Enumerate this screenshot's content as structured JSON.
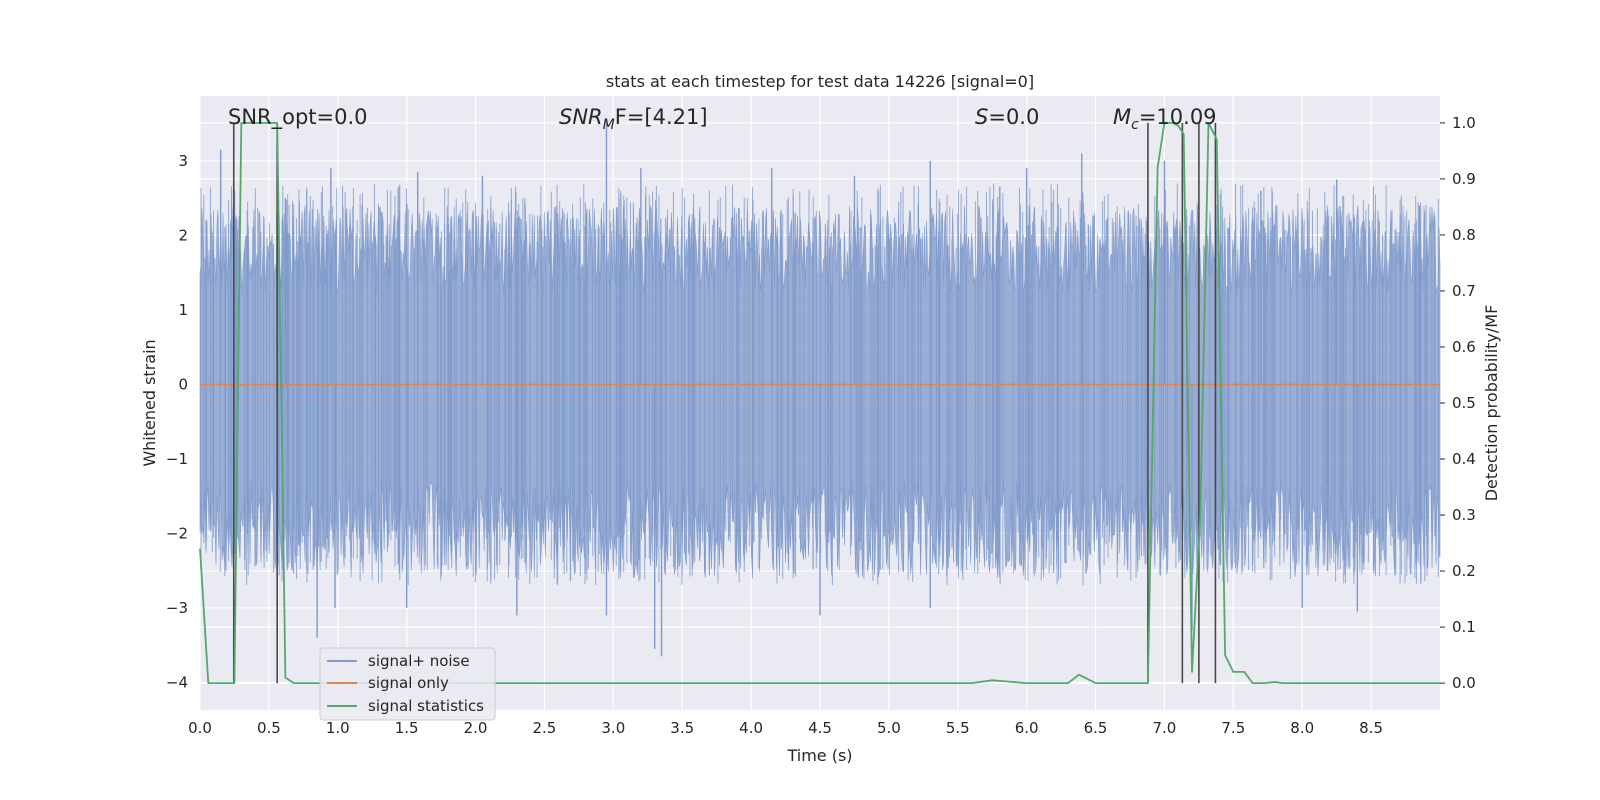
{
  "chart_data": {
    "type": "line",
    "title": "stats at each timestep for test data 14226 [signal=0]",
    "xlabel": "Time (s)",
    "ylabel": "Whitened strain",
    "ylabel_right": "Detection probability/MF",
    "xlim": [
      0.0,
      9.0
    ],
    "ylim": [
      -4.37,
      3.87
    ],
    "ylim_right": [
      -0.048,
      1.048
    ],
    "xticks": [
      "0.0",
      "0.5",
      "1.0",
      "1.5",
      "2.0",
      "2.5",
      "3.0",
      "3.5",
      "4.0",
      "4.5",
      "5.0",
      "5.5",
      "6.0",
      "6.5",
      "7.0",
      "7.5",
      "8.0",
      "8.5"
    ],
    "yticks": [
      "−4",
      "−3",
      "−2",
      "−1",
      "0",
      "1",
      "2",
      "3"
    ],
    "yticks_right": [
      "0.0",
      "0.1",
      "0.2",
      "0.3",
      "0.4",
      "0.5",
      "0.6",
      "0.7",
      "0.8",
      "0.9",
      "1.0"
    ],
    "annotations": {
      "snr_opt": "SNR_opt=0.0",
      "snr_mf_sym": "SNR",
      "snr_mf_sub": "M",
      "snr_mf_rest": "F=[4.21]",
      "s_sym": "S",
      "s_rest": "=0.0",
      "mc_sym": "M",
      "mc_sub": "c",
      "mc_rest": "=10.09"
    },
    "legend": {
      "position": "lower-left",
      "entries": [
        "signal+ noise",
        "signal only",
        "signal statistics"
      ]
    },
    "colors": {
      "noise": "#7f9acb",
      "signal": "#dd8452",
      "stats": "#55a868",
      "vlines": "#4a4a4a",
      "background": "#eaeaf2",
      "grid": "#ffffff"
    },
    "series": [
      {
        "name": "signal+ noise",
        "kind": "noise_envelope",
        "upper_typical": [
          1.2,
          2.4
        ],
        "lower_typical": [
          -1.3,
          -2.6
        ],
        "peaks_upper": [
          [
            0.15,
            3.15
          ],
          [
            0.62,
            2.5
          ],
          [
            0.95,
            2.9
          ],
          [
            1.58,
            2.85
          ],
          [
            2.05,
            2.8
          ],
          [
            2.95,
            3.55
          ],
          [
            3.2,
            2.9
          ],
          [
            4.15,
            2.9
          ],
          [
            4.75,
            2.8
          ],
          [
            5.3,
            3.0
          ],
          [
            6.0,
            2.9
          ],
          [
            6.4,
            3.1
          ],
          [
            7.0,
            3.0
          ],
          [
            7.7,
            2.6
          ],
          [
            8.25,
            2.75
          ],
          [
            8.85,
            2.4
          ]
        ],
        "peaks_lower": [
          [
            0.85,
            -3.4
          ],
          [
            0.98,
            -3.0
          ],
          [
            1.5,
            -3.0
          ],
          [
            2.3,
            -3.1
          ],
          [
            2.95,
            -3.1
          ],
          [
            3.3,
            -3.55
          ],
          [
            3.35,
            -3.65
          ],
          [
            4.5,
            -3.1
          ],
          [
            5.3,
            -3.0
          ],
          [
            7.2,
            -3.3
          ],
          [
            8.0,
            -3.0
          ],
          [
            8.4,
            -3.05
          ]
        ]
      },
      {
        "name": "signal only",
        "x": [
          0.0,
          9.0
        ],
        "y": [
          0.0,
          0.0
        ]
      },
      {
        "name": "signal statistics",
        "axis": "right",
        "x": [
          0.0,
          0.06,
          0.12,
          0.2,
          0.25,
          0.3,
          0.36,
          0.43,
          0.5,
          0.56,
          0.62,
          0.68,
          0.74,
          1.0,
          2.0,
          3.0,
          4.0,
          5.0,
          5.6,
          5.75,
          5.85,
          6.0,
          6.3,
          6.38,
          6.5,
          6.88,
          6.95,
          7.0,
          7.06,
          7.1,
          7.14,
          7.2,
          7.26,
          7.32,
          7.38,
          7.44,
          7.5,
          7.58,
          7.64,
          7.72,
          7.8,
          7.86,
          8.0,
          9.0
        ],
        "y": [
          0.24,
          0.0,
          0.0,
          0.0,
          0.0,
          1.0,
          1.0,
          1.0,
          1.0,
          1.0,
          0.01,
          0.0,
          0.0,
          0.0,
          0.0,
          0.0,
          0.0,
          0.0,
          0.0,
          0.005,
          0.003,
          0.0,
          0.0,
          0.015,
          0.0,
          0.0,
          0.92,
          1.0,
          1.0,
          0.995,
          0.98,
          0.02,
          0.3,
          1.0,
          0.97,
          0.05,
          0.02,
          0.02,
          0.0,
          0.0,
          0.002,
          0.0,
          0.0,
          0.0
        ]
      }
    ],
    "vertical_lines": [
      0.245,
      0.56,
      6.88,
      7.13,
      7.25,
      7.37
    ]
  }
}
